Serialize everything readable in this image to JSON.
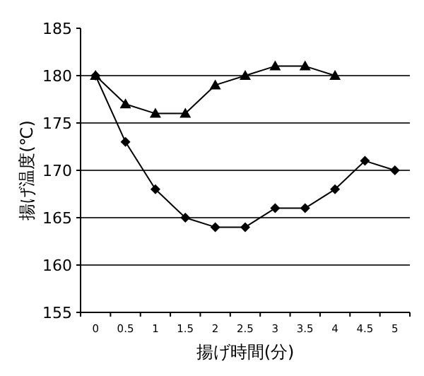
{
  "chart_data": {
    "type": "line",
    "xlabel": "揚げ時間(分)",
    "ylabel": "揚げ温度(℃)",
    "categories": [
      "0",
      "0.5",
      "1",
      "1.5",
      "2",
      "2.5",
      "3",
      "3.5",
      "4",
      "4.5",
      "5"
    ],
    "series": [
      {
        "color": "#000000",
        "marker": "triangle",
        "values": [
          180,
          177,
          176,
          176,
          179,
          180,
          181,
          181,
          180,
          null,
          null
        ]
      },
      {
        "color": "#000000",
        "marker": "diamond",
        "values": [
          180,
          173,
          168,
          165,
          164,
          164,
          166,
          166,
          168,
          171,
          170
        ]
      }
    ],
    "ylim": [
      155,
      185
    ],
    "yticks": [
      155,
      160,
      165,
      170,
      175,
      180,
      185
    ],
    "grid": "y"
  }
}
